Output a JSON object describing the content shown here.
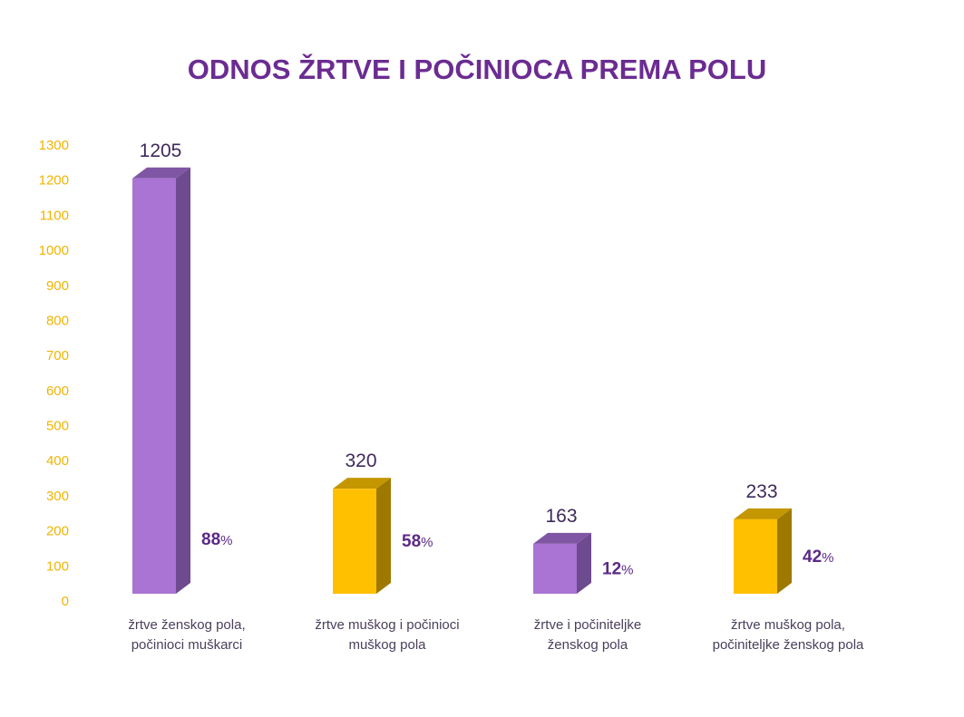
{
  "chart_data": {
    "type": "bar",
    "title": "ODNOS ŽRTVE I POČINIOCA PREMA POLU",
    "xlabel": "",
    "ylabel": "",
    "ylim": [
      0,
      1300
    ],
    "yticks": [
      0,
      100,
      200,
      300,
      400,
      500,
      600,
      700,
      800,
      900,
      1000,
      1100,
      1200,
      1300
    ],
    "categories": [
      [
        "žrtve ženskog pola,",
        "počinioci muškarci"
      ],
      [
        "žrtve muškog i počinioci",
        "muškog pola"
      ],
      [
        "žrtve i počiniteljke",
        "ženskog pola"
      ],
      [
        "žrtve muškog pola,",
        "počiniteljke ženskog pola"
      ]
    ],
    "values": [
      1205,
      320,
      163,
      233
    ],
    "percent_labels": [
      "88",
      "58",
      "12",
      "42"
    ],
    "percent_sign": "%",
    "bar_colors": [
      "#a974d4",
      "#ffc000",
      "#a974d4",
      "#ffc000"
    ],
    "bar_side_colors": [
      "#6e4a8e",
      "#9e7900",
      "#6e4a8e",
      "#9e7900"
    ],
    "bar_top_colors": [
      "#7f56a3",
      "#c49600",
      "#7f56a3",
      "#c49600"
    ],
    "title_color": "#6b2c91",
    "tick_color": "#f0b400"
  }
}
